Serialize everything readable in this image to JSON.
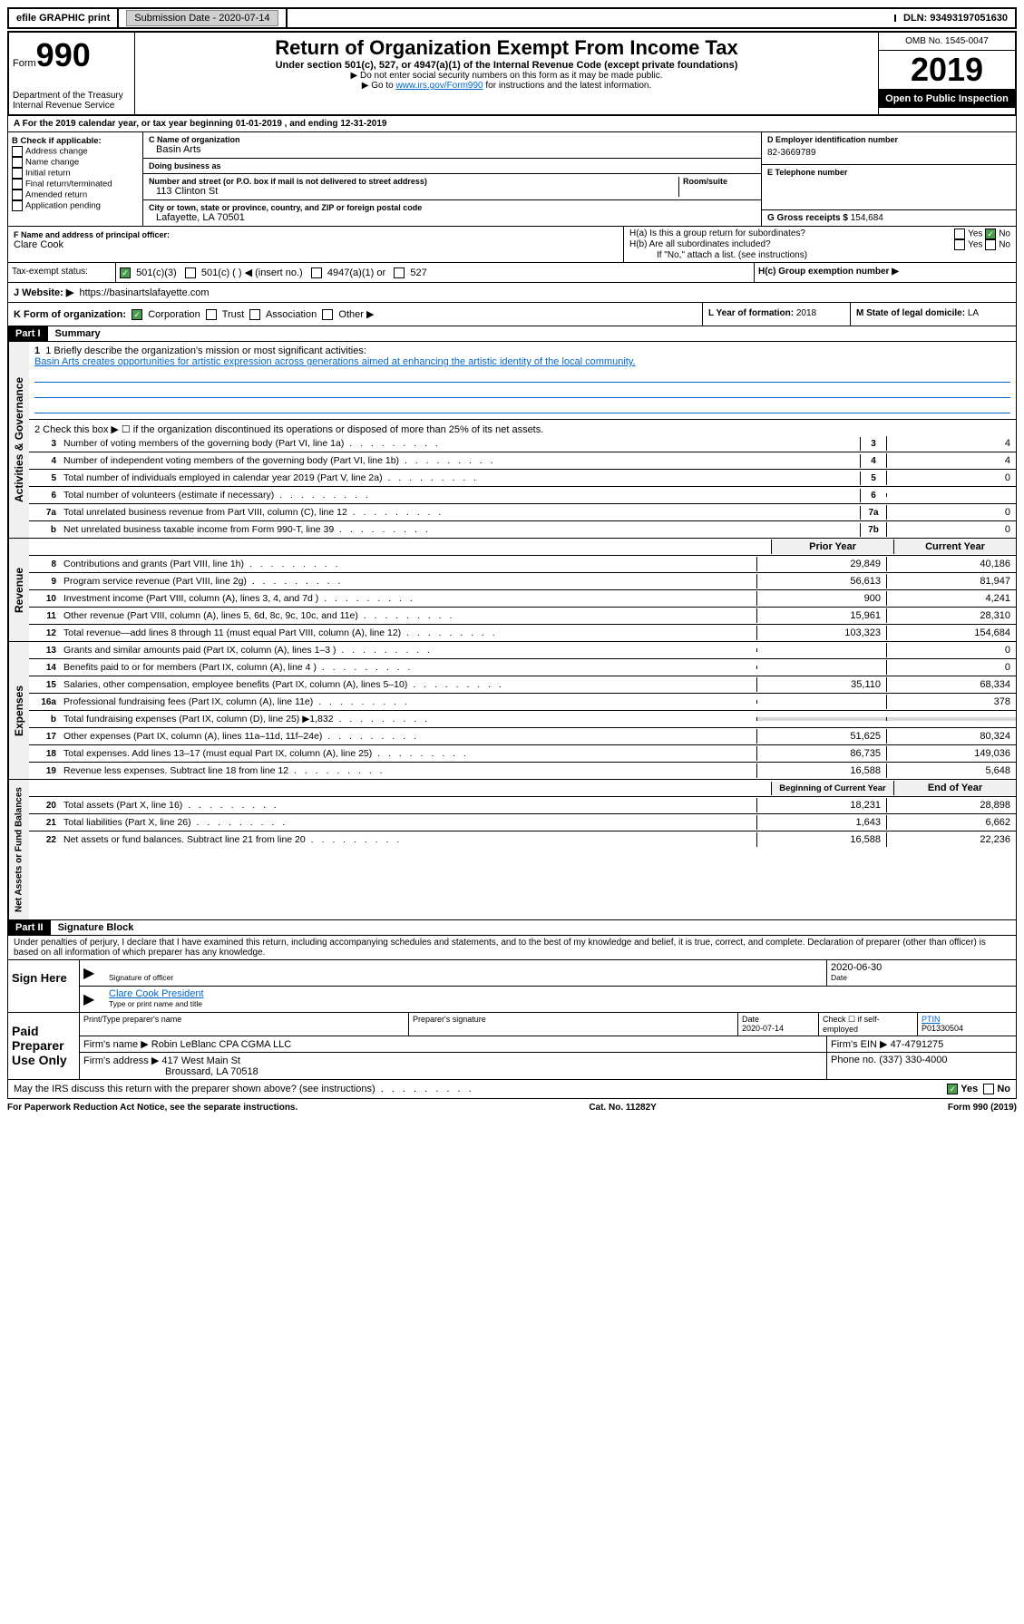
{
  "topbar": {
    "efile": "efile GRAPHIC print",
    "submission_label": "Submission Date - 2020-07-14",
    "dln": "DLN: 93493197051630"
  },
  "header": {
    "form_label": "Form",
    "form_num": "990",
    "dept": "Department of the Treasury\nInternal Revenue Service",
    "title": "Return of Organization Exempt From Income Tax",
    "subtitle": "Under section 501(c), 527, or 4947(a)(1) of the Internal Revenue Code (except private foundations)",
    "note1": "▶ Do not enter social security numbers on this form as it may be made public.",
    "note2_pre": "▶ Go to ",
    "note2_link": "www.irs.gov/Form990",
    "note2_post": " for instructions and the latest information.",
    "omb": "OMB No. 1545-0047",
    "year": "2019",
    "inspection": "Open to Public Inspection"
  },
  "row_a": "A For the 2019 calendar year, or tax year beginning 01-01-2019    , and ending 12-31-2019",
  "section_b": {
    "check_label": "B Check if applicable:",
    "checks": [
      "Address change",
      "Name change",
      "Initial return",
      "Final return/terminated",
      "Amended return",
      "Application pending"
    ],
    "c_label": "C Name of organization",
    "c_value": "Basin Arts",
    "dba_label": "Doing business as",
    "addr_label": "Number and street (or P.O. box if mail is not delivered to street address)",
    "addr_value": "113 Clinton St",
    "room_label": "Room/suite",
    "city_label": "City or town, state or province, country, and ZIP or foreign postal code",
    "city_value": "Lafayette, LA  70501",
    "d_label": "D Employer identification number",
    "d_value": "82-3669789",
    "e_label": "E Telephone number",
    "g_label": "G Gross receipts $ ",
    "g_value": "154,684",
    "f_label": "F  Name and address of principal officer:",
    "f_value": "Clare Cook",
    "ha_label": "H(a)  Is this a group return for subordinates?",
    "hb_label": "H(b)  Are all subordinates included?",
    "hb_note": "If \"No,\" attach a list. (see instructions)",
    "hc_label": "H(c)  Group exemption number ▶",
    "tax_label": "Tax-exempt status:",
    "tax_opts": [
      "501(c)(3)",
      "501(c) (   ) ◀ (insert no.)",
      "4947(a)(1) or",
      "527"
    ],
    "j_label": "J  Website: ▶",
    "j_value": "https://basinartslafayette.com",
    "k_label": "K Form of organization:",
    "k_opts": [
      "Corporation",
      "Trust",
      "Association",
      "Other ▶"
    ],
    "l_label": "L Year of formation: ",
    "l_value": "2018",
    "m_label": "M State of legal domicile: ",
    "m_value": "LA"
  },
  "part1": {
    "header": "Part I",
    "title": "Summary",
    "sections": {
      "gov_label": "Activities & Governance",
      "rev_label": "Revenue",
      "exp_label": "Expenses",
      "net_label": "Net Assets or Fund Balances"
    },
    "line1_label": "1  Briefly describe the organization's mission or most significant activities:",
    "line1_value": "Basin Arts creates opportunities for artistic expression across generations aimed at enhancing the artistic identity of the local community.",
    "line2": "2   Check this box ▶ ☐  if the organization discontinued its operations or disposed of more than 25% of its net assets.",
    "prior_year": "Prior Year",
    "current_year": "Current Year",
    "begin_year": "Beginning of Current Year",
    "end_year": "End of Year",
    "lines_gov": [
      {
        "n": "3",
        "t": "Number of voting members of the governing body (Part VI, line 1a)",
        "box": "3",
        "v": "4"
      },
      {
        "n": "4",
        "t": "Number of independent voting members of the governing body (Part VI, line 1b)",
        "box": "4",
        "v": "4"
      },
      {
        "n": "5",
        "t": "Total number of individuals employed in calendar year 2019 (Part V, line 2a)",
        "box": "5",
        "v": "0"
      },
      {
        "n": "6",
        "t": "Total number of volunteers (estimate if necessary)",
        "box": "6",
        "v": ""
      },
      {
        "n": "7a",
        "t": "Total unrelated business revenue from Part VIII, column (C), line 12",
        "box": "7a",
        "v": "0"
      },
      {
        "n": "b",
        "t": "Net unrelated business taxable income from Form 990-T, line 39",
        "box": "7b",
        "v": "0"
      }
    ],
    "lines_rev": [
      {
        "n": "8",
        "t": "Contributions and grants (Part VIII, line 1h)",
        "p": "29,849",
        "c": "40,186"
      },
      {
        "n": "9",
        "t": "Program service revenue (Part VIII, line 2g)",
        "p": "56,613",
        "c": "81,947"
      },
      {
        "n": "10",
        "t": "Investment income (Part VIII, column (A), lines 3, 4, and 7d )",
        "p": "900",
        "c": "4,241"
      },
      {
        "n": "11",
        "t": "Other revenue (Part VIII, column (A), lines 5, 6d, 8c, 9c, 10c, and 11e)",
        "p": "15,961",
        "c": "28,310"
      },
      {
        "n": "12",
        "t": "Total revenue—add lines 8 through 11 (must equal Part VIII, column (A), line 12)",
        "p": "103,323",
        "c": "154,684"
      }
    ],
    "lines_exp": [
      {
        "n": "13",
        "t": "Grants and similar amounts paid (Part IX, column (A), lines 1–3 )",
        "p": "",
        "c": "0"
      },
      {
        "n": "14",
        "t": "Benefits paid to or for members (Part IX, column (A), line 4 )",
        "p": "",
        "c": "0"
      },
      {
        "n": "15",
        "t": "Salaries, other compensation, employee benefits (Part IX, column (A), lines 5–10)",
        "p": "35,110",
        "c": "68,334"
      },
      {
        "n": "16a",
        "t": "Professional fundraising fees (Part IX, column (A), line 11e)",
        "p": "",
        "c": "378"
      },
      {
        "n": "b",
        "t": "Total fundraising expenses (Part IX, column (D), line 25) ▶1,832",
        "p": "gray",
        "c": "gray"
      },
      {
        "n": "17",
        "t": "Other expenses (Part IX, column (A), lines 11a–11d, 11f–24e)",
        "p": "51,625",
        "c": "80,324"
      },
      {
        "n": "18",
        "t": "Total expenses. Add lines 13–17 (must equal Part IX, column (A), line 25)",
        "p": "86,735",
        "c": "149,036"
      },
      {
        "n": "19",
        "t": "Revenue less expenses. Subtract line 18 from line 12",
        "p": "16,588",
        "c": "5,648"
      }
    ],
    "lines_net": [
      {
        "n": "20",
        "t": "Total assets (Part X, line 16)",
        "p": "18,231",
        "c": "28,898"
      },
      {
        "n": "21",
        "t": "Total liabilities (Part X, line 26)",
        "p": "1,643",
        "c": "6,662"
      },
      {
        "n": "22",
        "t": "Net assets or fund balances. Subtract line 21 from line 20",
        "p": "16,588",
        "c": "22,236"
      }
    ]
  },
  "part2": {
    "header": "Part II",
    "title": "Signature Block",
    "declaration": "Under penalties of perjury, I declare that I have examined this return, including accompanying schedules and statements, and to the best of my knowledge and belief, it is true, correct, and complete. Declaration of preparer (other than officer) is based on all information of which preparer has any knowledge.",
    "sign_here": "Sign Here",
    "paid_prep": "Paid Preparer Use Only",
    "sig_officer": "Signature of officer",
    "sig_date": "2020-06-30",
    "date_label": "Date",
    "name_title": "Clare Cook  President",
    "name_title_label": "Type or print name and title",
    "prep_name_label": "Print/Type preparer's name",
    "prep_sig_label": "Preparer's signature",
    "prep_date_label": "Date",
    "prep_date": "2020-07-14",
    "check_self": "Check ☐ if self-employed",
    "ptin_label": "PTIN",
    "ptin": "P01330504",
    "firm_name_label": "Firm's name     ▶",
    "firm_name": "Robin LeBlanc CPA CGMA LLC",
    "firm_ein_label": "Firm's EIN ▶",
    "firm_ein": "47-4791275",
    "firm_addr_label": "Firm's address ▶",
    "firm_addr1": "417 West Main St",
    "firm_addr2": "Broussard, LA  70518",
    "phone_label": "Phone no. ",
    "phone": "(337) 330-4000",
    "discuss": "May the IRS discuss this return with the preparer shown above? (see instructions)",
    "yes": "Yes",
    "no": "No"
  },
  "footer": {
    "left": "For Paperwork Reduction Act Notice, see the separate instructions.",
    "mid": "Cat. No. 11282Y",
    "right": "Form 990 (2019)"
  }
}
